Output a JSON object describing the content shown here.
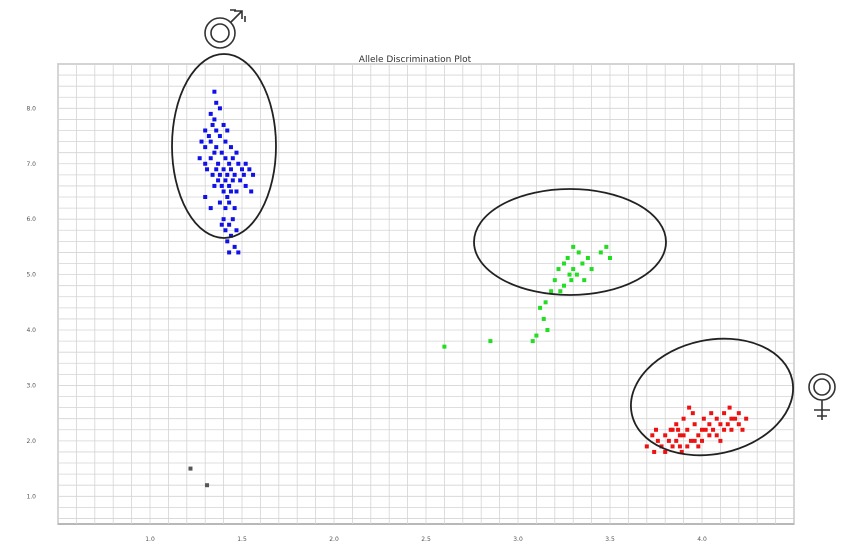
{
  "chart_data": {
    "type": "scatter",
    "title": "Allele Discrimination Plot",
    "xlabel": "",
    "ylabel": "",
    "xlim": [
      0.5,
      4.5
    ],
    "ylim": [
      0.5,
      8.8
    ],
    "x_ticks": [
      "1.0",
      "1.5",
      "2.0",
      "2.5",
      "3.0",
      "3.5",
      "4.0"
    ],
    "y_ticks": [
      "1.0",
      "2.0",
      "3.0",
      "4.0",
      "5.0",
      "6.0",
      "7.0",
      "8.0"
    ],
    "grid": true,
    "legend": "none",
    "series": [
      {
        "color": "#1010e8",
        "points": [
          [
            1.35,
            8.3
          ],
          [
            1.36,
            8.1
          ],
          [
            1.33,
            7.9
          ],
          [
            1.35,
            7.8
          ],
          [
            1.38,
            8.0
          ],
          [
            1.3,
            7.6
          ],
          [
            1.32,
            7.5
          ],
          [
            1.34,
            7.7
          ],
          [
            1.36,
            7.6
          ],
          [
            1.4,
            7.7
          ],
          [
            1.42,
            7.6
          ],
          [
            1.28,
            7.4
          ],
          [
            1.3,
            7.3
          ],
          [
            1.33,
            7.4
          ],
          [
            1.36,
            7.3
          ],
          [
            1.38,
            7.5
          ],
          [
            1.41,
            7.4
          ],
          [
            1.44,
            7.3
          ],
          [
            1.47,
            7.2
          ],
          [
            1.27,
            7.1
          ],
          [
            1.3,
            7.0
          ],
          [
            1.33,
            7.1
          ],
          [
            1.35,
            7.2
          ],
          [
            1.37,
            7.0
          ],
          [
            1.39,
            7.2
          ],
          [
            1.41,
            7.1
          ],
          [
            1.43,
            7.0
          ],
          [
            1.45,
            7.1
          ],
          [
            1.48,
            7.0
          ],
          [
            1.5,
            6.9
          ],
          [
            1.52,
            7.0
          ],
          [
            1.54,
            6.9
          ],
          [
            1.31,
            6.9
          ],
          [
            1.34,
            6.8
          ],
          [
            1.36,
            6.9
          ],
          [
            1.38,
            6.8
          ],
          [
            1.4,
            6.9
          ],
          [
            1.42,
            6.8
          ],
          [
            1.44,
            6.9
          ],
          [
            1.46,
            6.8
          ],
          [
            1.49,
            6.7
          ],
          [
            1.51,
            6.8
          ],
          [
            1.56,
            6.8
          ],
          [
            1.35,
            6.6
          ],
          [
            1.37,
            6.7
          ],
          [
            1.39,
            6.6
          ],
          [
            1.41,
            6.7
          ],
          [
            1.43,
            6.6
          ],
          [
            1.45,
            6.7
          ],
          [
            1.47,
            6.5
          ],
          [
            1.4,
            6.5
          ],
          [
            1.42,
            6.4
          ],
          [
            1.44,
            6.5
          ],
          [
            1.38,
            6.3
          ],
          [
            1.41,
            6.2
          ],
          [
            1.43,
            6.3
          ],
          [
            1.46,
            6.2
          ],
          [
            1.4,
            6.0
          ],
          [
            1.43,
            5.9
          ],
          [
            1.45,
            6.0
          ],
          [
            1.41,
            5.8
          ],
          [
            1.44,
            5.7
          ],
          [
            1.47,
            5.8
          ],
          [
            1.42,
            5.6
          ],
          [
            1.46,
            5.5
          ],
          [
            1.43,
            5.4
          ],
          [
            1.48,
            5.4
          ],
          [
            1.39,
            5.9
          ],
          [
            1.33,
            6.2
          ],
          [
            1.3,
            6.4
          ],
          [
            1.52,
            6.6
          ],
          [
            1.55,
            6.5
          ]
        ]
      },
      {
        "color": "#22dd22",
        "points": [
          [
            3.3,
            5.5
          ],
          [
            3.27,
            5.3
          ],
          [
            3.33,
            5.4
          ],
          [
            3.25,
            5.2
          ],
          [
            3.3,
            5.1
          ],
          [
            3.35,
            5.2
          ],
          [
            3.22,
            5.1
          ],
          [
            3.28,
            5.0
          ],
          [
            3.32,
            5.0
          ],
          [
            3.2,
            4.9
          ],
          [
            3.25,
            4.8
          ],
          [
            3.29,
            4.9
          ],
          [
            3.18,
            4.7
          ],
          [
            3.23,
            4.7
          ],
          [
            3.36,
            4.9
          ],
          [
            3.4,
            5.1
          ],
          [
            3.45,
            5.4
          ],
          [
            3.48,
            5.5
          ],
          [
            3.5,
            5.3
          ],
          [
            3.15,
            4.5
          ],
          [
            3.12,
            4.4
          ],
          [
            3.14,
            4.2
          ],
          [
            3.16,
            4.0
          ],
          [
            3.1,
            3.9
          ],
          [
            3.08,
            3.8
          ],
          [
            2.85,
            3.8
          ],
          [
            2.6,
            3.7
          ],
          [
            3.38,
            5.3
          ]
        ]
      },
      {
        "color": "#ee1111",
        "points": [
          [
            3.73,
            2.1
          ],
          [
            3.76,
            2.0
          ],
          [
            3.8,
            2.1
          ],
          [
            3.84,
            2.2
          ],
          [
            3.88,
            2.1
          ],
          [
            3.92,
            2.2
          ],
          [
            3.96,
            2.3
          ],
          [
            4.0,
            2.2
          ],
          [
            4.04,
            2.3
          ],
          [
            4.08,
            2.4
          ],
          [
            4.12,
            2.5
          ],
          [
            4.16,
            2.4
          ],
          [
            4.2,
            2.5
          ],
          [
            4.24,
            2.4
          ],
          [
            3.78,
            1.9
          ],
          [
            3.82,
            2.0
          ],
          [
            3.86,
            2.0
          ],
          [
            3.9,
            2.1
          ],
          [
            3.94,
            2.0
          ],
          [
            3.98,
            2.1
          ],
          [
            4.02,
            2.2
          ],
          [
            4.06,
            2.2
          ],
          [
            4.1,
            2.3
          ],
          [
            4.14,
            2.3
          ],
          [
            4.18,
            2.4
          ],
          [
            3.8,
            1.8
          ],
          [
            3.84,
            1.9
          ],
          [
            3.88,
            1.9
          ],
          [
            3.92,
            1.9
          ],
          [
            3.96,
            2.0
          ],
          [
            4.0,
            2.0
          ],
          [
            4.04,
            2.1
          ],
          [
            4.08,
            2.1
          ],
          [
            4.12,
            2.2
          ],
          [
            4.16,
            2.2
          ],
          [
            4.2,
            2.3
          ],
          [
            3.7,
            1.9
          ],
          [
            3.74,
            1.8
          ],
          [
            3.86,
            2.3
          ],
          [
            3.9,
            2.4
          ],
          [
            3.95,
            2.5
          ],
          [
            4.05,
            2.5
          ],
          [
            3.83,
            2.2
          ],
          [
            3.75,
            2.2
          ],
          [
            3.89,
            1.8
          ],
          [
            3.98,
            1.9
          ],
          [
            4.1,
            2.0
          ],
          [
            4.22,
            2.2
          ],
          [
            3.93,
            2.6
          ],
          [
            3.87,
            2.2
          ],
          [
            4.01,
            2.4
          ],
          [
            4.15,
            2.6
          ]
        ]
      },
      {
        "color": "#555555",
        "points": [
          [
            1.22,
            1.5
          ],
          [
            1.31,
            1.2
          ]
        ]
      }
    ]
  }
}
